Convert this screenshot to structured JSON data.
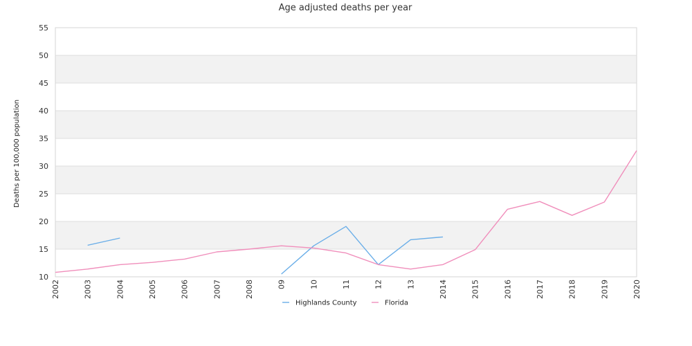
{
  "chart_data": {
    "type": "line",
    "title": "Age adjusted deaths per year",
    "ylabel": "Deaths per 100,000 population",
    "xlabel": "",
    "categories": [
      "2002",
      "2003",
      "2004",
      "2005",
      "2006",
      "2007",
      "2008",
      "09",
      "10",
      "11",
      "12",
      "13",
      "2014",
      "2015",
      "2016",
      "2017",
      "2018",
      "2019",
      "2020"
    ],
    "ylim": [
      10,
      55
    ],
    "yticks": [
      10,
      15,
      20,
      25,
      30,
      35,
      40,
      45,
      50,
      55
    ],
    "grid": "alternating horizontal bands",
    "legend_position": "bottom-center",
    "series": [
      {
        "name": "Highlands County",
        "color": "#6aaee8",
        "values": [
          null,
          15.7,
          17.0,
          null,
          null,
          null,
          null,
          10.5,
          15.6,
          19.1,
          12.2,
          16.7,
          17.2,
          null,
          null,
          null,
          null,
          null,
          null
        ]
      },
      {
        "name": "Florida",
        "color": "#f08ebb",
        "values": [
          10.8,
          11.4,
          12.2,
          12.6,
          13.2,
          14.5,
          15.0,
          15.6,
          15.2,
          14.3,
          12.2,
          11.4,
          12.2,
          14.9,
          22.2,
          23.6,
          21.1,
          23.5,
          32.8
        ]
      }
    ]
  }
}
